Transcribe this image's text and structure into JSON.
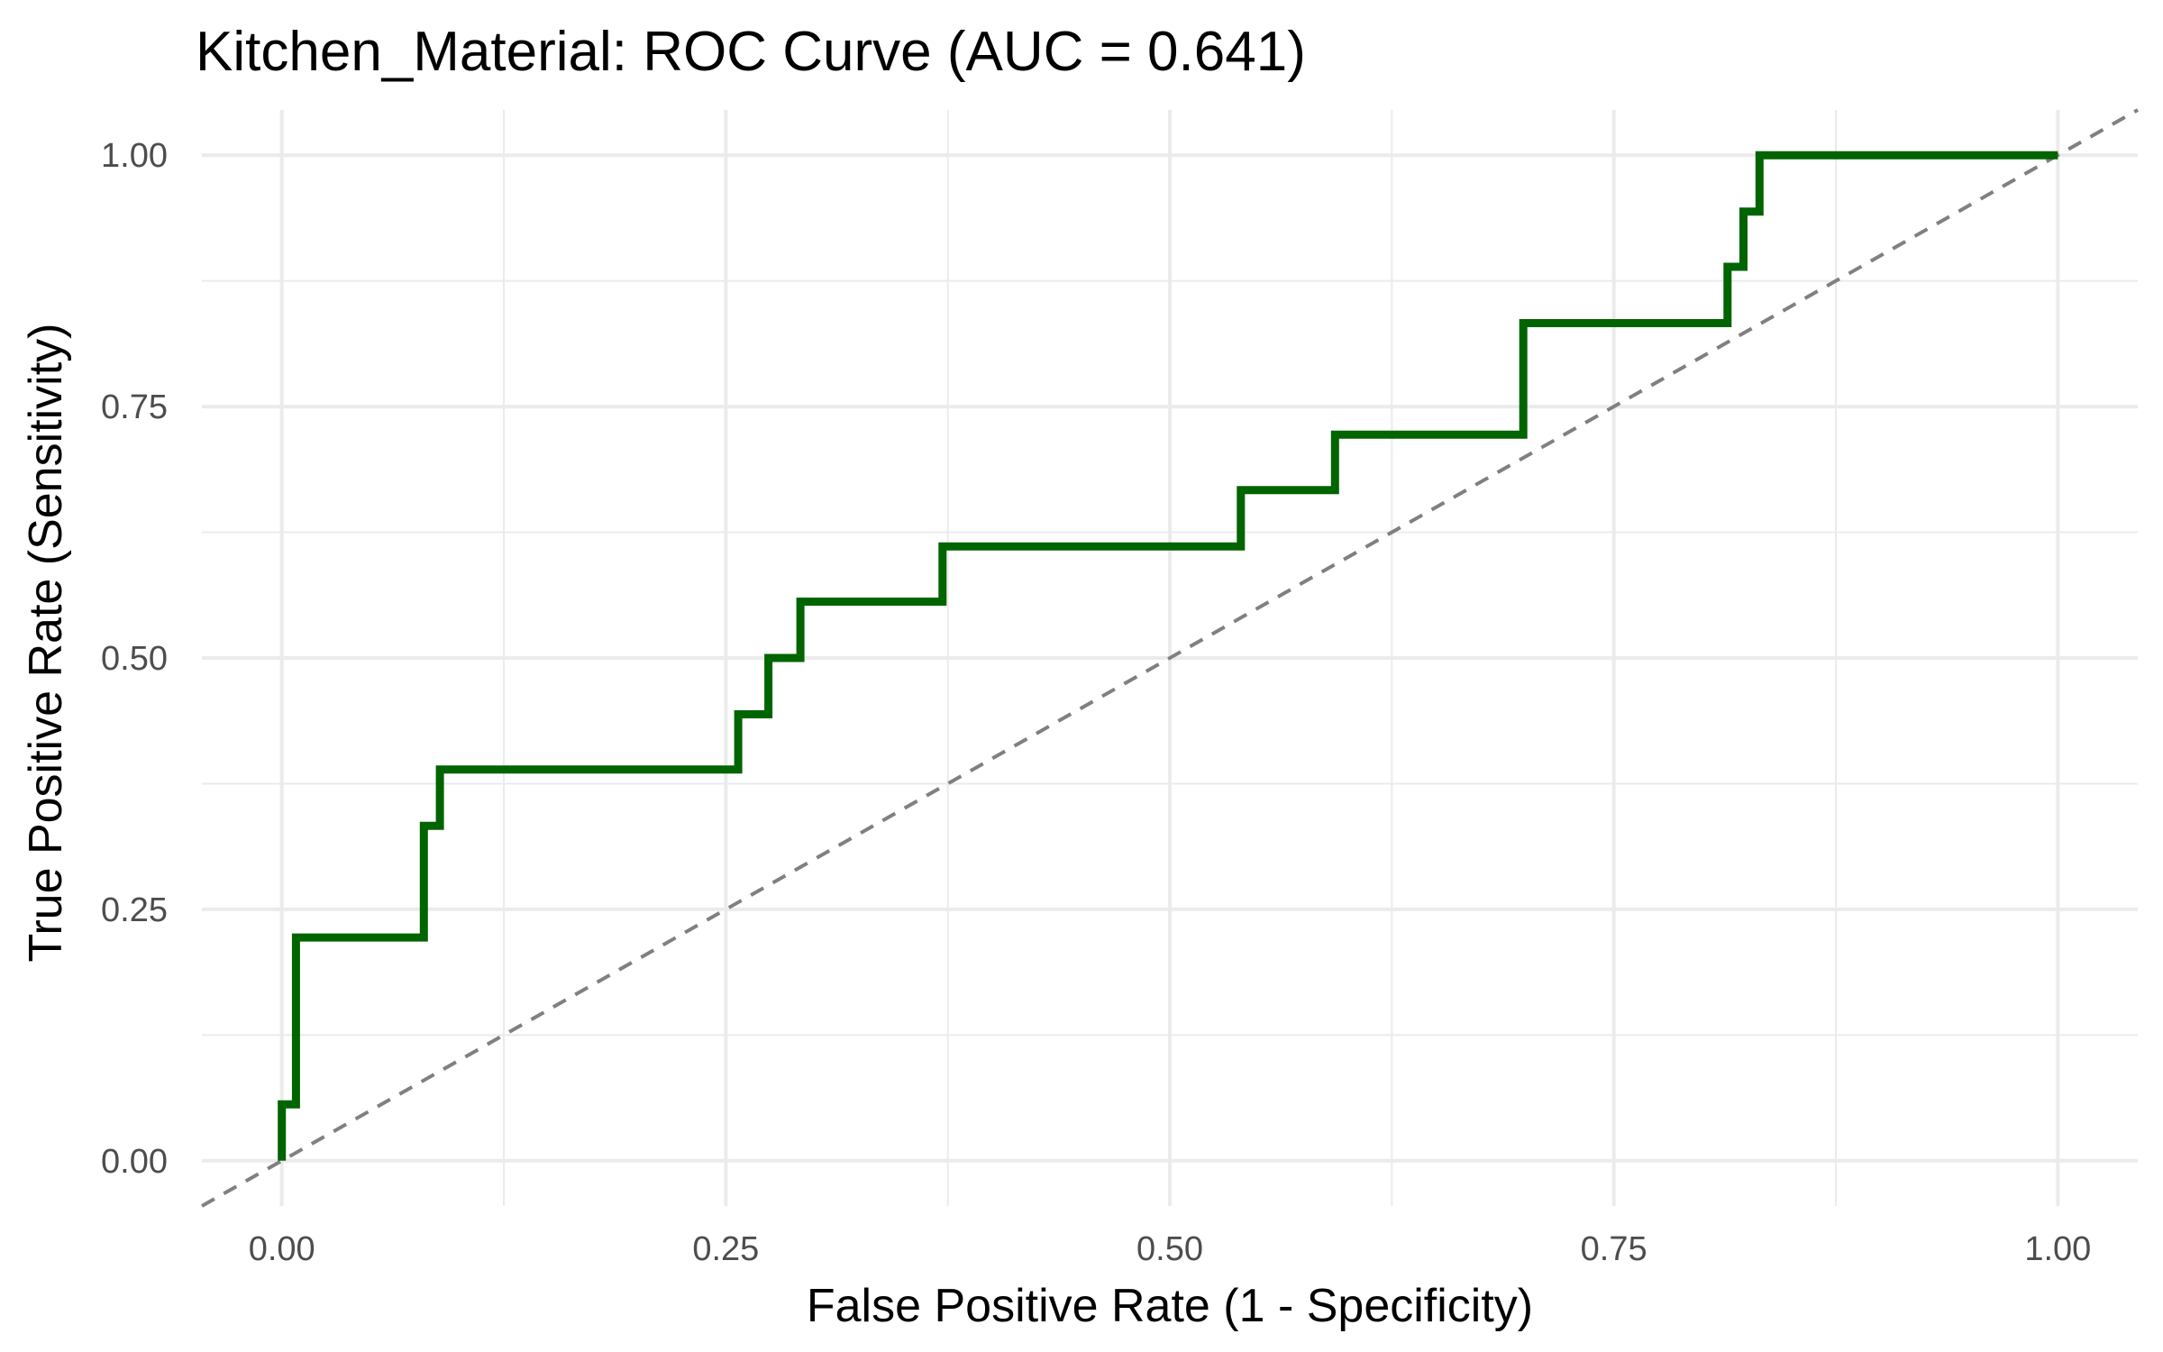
{
  "chart_data": {
    "type": "line",
    "title": "Kitchen_Material: ROC Curve (AUC = 0.641)",
    "xlabel": "False Positive Rate (1 - Specificity)",
    "ylabel": "True Positive Rate (Sensitivity)",
    "xlim": [
      -0.045,
      1.045
    ],
    "ylim": [
      -0.045,
      1.045
    ],
    "x_ticks": [
      0,
      0.25,
      0.5,
      0.75,
      1
    ],
    "x_tick_labels": [
      "0.00",
      "0.25",
      "0.50",
      "0.75",
      "1.00"
    ],
    "y_ticks": [
      0,
      0.25,
      0.5,
      0.75,
      1
    ],
    "y_tick_labels": [
      "0.00",
      "0.25",
      "0.50",
      "0.75",
      "1.00"
    ],
    "grid": true,
    "series": [
      {
        "color": "#006400",
        "style": "step",
        "x": [
          0.0,
          0.0,
          0.008,
          0.008,
          0.08,
          0.08,
          0.089,
          0.089,
          0.257,
          0.257,
          0.274,
          0.274,
          0.292,
          0.292,
          0.372,
          0.372,
          0.54,
          0.54,
          0.593,
          0.593,
          0.699,
          0.699,
          0.814,
          0.814,
          0.823,
          0.823,
          0.832,
          0.832,
          1.0
        ],
        "y": [
          0.0,
          0.056,
          0.056,
          0.222,
          0.222,
          0.333,
          0.333,
          0.389,
          0.389,
          0.444,
          0.444,
          0.5,
          0.5,
          0.556,
          0.556,
          0.611,
          0.611,
          0.667,
          0.667,
          0.722,
          0.722,
          0.833,
          0.833,
          0.889,
          0.889,
          0.944,
          0.944,
          1.0,
          1.0
        ]
      },
      {
        "color": "#808080",
        "style": "dashed",
        "x": [
          -0.045,
          1.045
        ],
        "y": [
          -0.045,
          1.045
        ]
      }
    ]
  }
}
